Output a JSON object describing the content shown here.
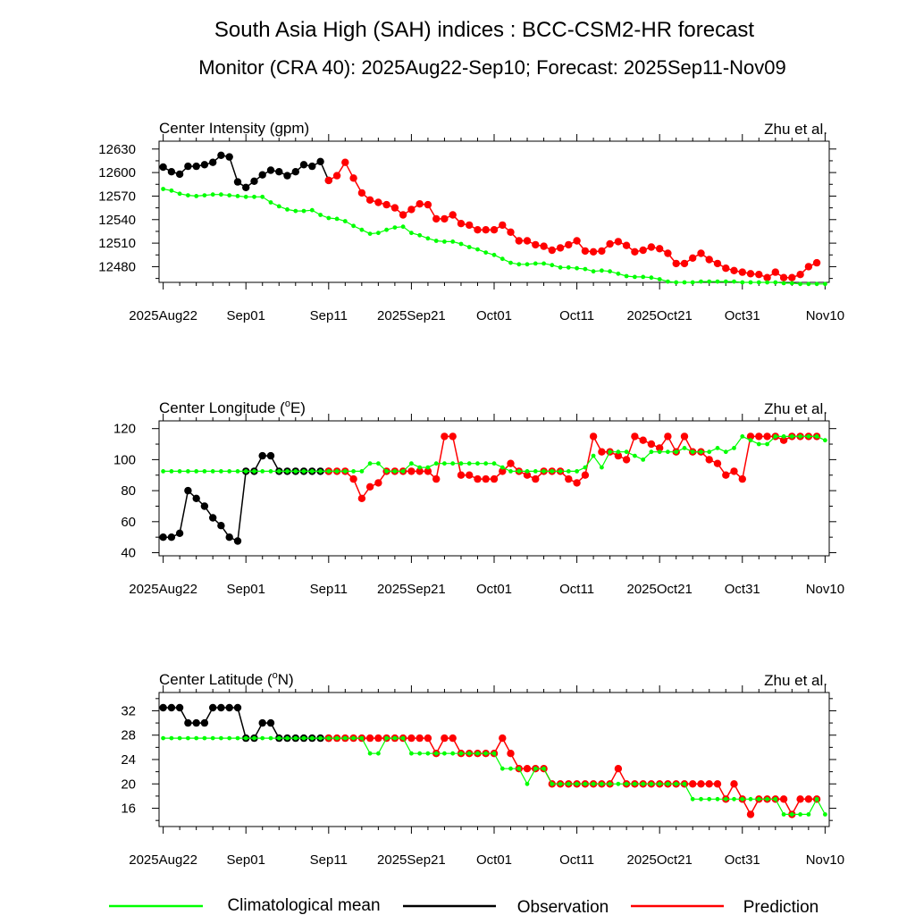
{
  "title": "South Asia High (SAH) indices : BCC-CSM2-HR forecast",
  "subtitle": "Monitor (CRA 40): 2025Aug22-Sep10; Forecast: 2025Sep11-Nov09",
  "colors": {
    "clim": "#00ff00",
    "obs": "#000000",
    "pred": "#ff0000"
  },
  "legend": {
    "placement": "bottom",
    "clim": "Climatological mean",
    "obs": "Observation",
    "pred": "Prediction"
  },
  "chart_data": [
    {
      "type": "line",
      "title": "Center Intensity (gpm)",
      "credit": "Zhu et al.",
      "ylim": [
        12460,
        12640
      ],
      "yticks": [
        12480,
        12510,
        12540,
        12570,
        12600,
        12630
      ],
      "yticklabels": [
        "12480",
        "12510",
        "12540",
        "12570",
        "12600",
        "12630"
      ],
      "xlim": [
        -0.5,
        80.5
      ],
      "xtick_positions": [
        0,
        10,
        20,
        30,
        40,
        50,
        60,
        70,
        80
      ],
      "xtick_labels": [
        "2025Aug22",
        "Sep01",
        "Sep11",
        "2025Sep21",
        "Oct01",
        "Oct11",
        "2025Oct21",
        "Oct31",
        "Nov10"
      ],
      "series": [
        {
          "name": "Climatological mean",
          "start": 0,
          "values": [
            12579,
            12577,
            12573,
            12571,
            12570,
            12571,
            12572,
            12572,
            12571,
            12570,
            12569,
            12569,
            12569,
            12562,
            12557,
            12553,
            12551,
            12551,
            12552,
            12546,
            12542,
            12541,
            12538,
            12532,
            12527,
            12522,
            12523,
            12527,
            12530,
            12531,
            12523,
            12520,
            12516,
            12513,
            12512,
            12512,
            12509,
            12505,
            12502,
            12498,
            12495,
            12490,
            12485,
            12483,
            12483,
            12484,
            12484,
            12482,
            12479,
            12479,
            12478,
            12477,
            12474,
            12475,
            12474,
            12471,
            12468,
            12467,
            12467,
            12466,
            12464,
            12461,
            12460,
            12460,
            12460,
            12461,
            12461,
            12461,
            12461,
            12461,
            12460,
            12460,
            12460,
            12460,
            12460,
            12459,
            12459,
            12458,
            12458,
            12458,
            12458
          ]
        },
        {
          "name": "Observation",
          "start": 0,
          "values": [
            12607,
            12601,
            12598,
            12608,
            12608,
            12610,
            12613,
            12622,
            12620,
            12588,
            12581,
            12589,
            12597,
            12603,
            12601,
            12596,
            12601,
            12610,
            12608,
            12614,
            12590
          ]
        },
        {
          "name": "Prediction",
          "start": 20,
          "values": [
            12590,
            12596,
            12613,
            12593,
            12574,
            12565,
            12562,
            12559,
            12555,
            12546,
            12553,
            12560,
            12559,
            12541,
            12541,
            12546,
            12535,
            12533,
            12527,
            12527,
            12527,
            12533,
            12524,
            12513,
            12513,
            12508,
            12506,
            12501,
            12504,
            12508,
            12513,
            12500,
            12499,
            12500,
            12509,
            12512,
            12507,
            12499,
            12501,
            12505,
            12503,
            12497,
            12484,
            12484,
            12491,
            12497,
            12489,
            12484,
            12478,
            12475,
            12473,
            12471,
            12470,
            12466,
            12473,
            12466,
            12466,
            12470,
            12480,
            12485
          ]
        }
      ]
    },
    {
      "type": "line",
      "title": "Center Longitude (°E)",
      "credit": "Zhu et al.",
      "ylim": [
        38,
        125
      ],
      "yticks": [
        40,
        60,
        80,
        100,
        120
      ],
      "yticklabels": [
        "40",
        "60",
        "80",
        "100",
        "120"
      ],
      "xlim": [
        -0.5,
        80.5
      ],
      "xtick_positions": [
        0,
        10,
        20,
        30,
        40,
        50,
        60,
        70,
        80
      ],
      "xtick_labels": [
        "2025Aug22",
        "Sep01",
        "Sep11",
        "2025Sep21",
        "Oct01",
        "Oct11",
        "2025Oct21",
        "Oct31",
        "Nov10"
      ],
      "series": [
        {
          "name": "Climatological mean",
          "start": 0,
          "values": [
            92.5,
            92.5,
            92.5,
            92.5,
            92.5,
            92.5,
            92.5,
            92.5,
            92.5,
            92.5,
            92.5,
            92.5,
            92.5,
            92.5,
            92.5,
            92.5,
            92.5,
            92.5,
            92.5,
            92.5,
            92.5,
            92.5,
            92.5,
            92.5,
            92.5,
            97.5,
            97.5,
            92.5,
            92.5,
            92.5,
            97.5,
            95,
            95,
            97.5,
            97.5,
            97.5,
            97.5,
            97.5,
            97.5,
            97.5,
            97.5,
            95,
            92.5,
            92.5,
            92.5,
            92.5,
            92.5,
            92.5,
            92.5,
            92.5,
            92.5,
            95,
            102.5,
            95,
            105,
            105,
            105,
            102.5,
            100,
            105,
            105,
            105,
            105,
            107.5,
            105,
            105,
            105,
            107.5,
            105,
            107.5,
            115,
            112.5,
            110,
            110,
            115,
            115,
            115,
            115,
            115,
            115,
            112.5
          ]
        },
        {
          "name": "Observation",
          "start": 0,
          "values": [
            50,
            50,
            52.5,
            80,
            75,
            70,
            62.5,
            57.5,
            50,
            47.5,
            92.5,
            92.5,
            102.5,
            102.5,
            92.5,
            92.5,
            92.5,
            92.5,
            92.5,
            92.5,
            92.5
          ]
        },
        {
          "name": "Prediction",
          "start": 20,
          "values": [
            92.5,
            92.5,
            92.5,
            87.5,
            75,
            82.5,
            85,
            92.5,
            92.5,
            92.5,
            92.5,
            92.5,
            92.5,
            87.5,
            115,
            115,
            90,
            90,
            87.5,
            87.5,
            87.5,
            92.5,
            97.5,
            92.5,
            90,
            87.5,
            92.5,
            92.5,
            92.5,
            87.5,
            85,
            90,
            115,
            105,
            105,
            102.5,
            100,
            115,
            112.5,
            110,
            107.5,
            115,
            105,
            115,
            105,
            105,
            100,
            97.5,
            90,
            92.5,
            87.5,
            115,
            115,
            115,
            115,
            112.5,
            115,
            115,
            115,
            115
          ]
        }
      ]
    },
    {
      "type": "line",
      "title": "Center Latitude (°N)",
      "credit": "Zhu et al.",
      "ylim": [
        13,
        35
      ],
      "yticks": [
        16,
        20,
        24,
        28,
        32
      ],
      "yticklabels": [
        "16",
        "20",
        "24",
        "28",
        "32"
      ],
      "xlim": [
        -0.5,
        80.5
      ],
      "xtick_positions": [
        0,
        10,
        20,
        30,
        40,
        50,
        60,
        70,
        80
      ],
      "xtick_labels": [
        "2025Aug22",
        "Sep01",
        "Sep11",
        "2025Sep21",
        "Oct01",
        "Oct11",
        "2025Oct21",
        "Oct31",
        "Nov10"
      ],
      "series": [
        {
          "name": "Climatological mean",
          "start": 0,
          "values": [
            27.5,
            27.5,
            27.5,
            27.5,
            27.5,
            27.5,
            27.5,
            27.5,
            27.5,
            27.5,
            27.5,
            27.5,
            27.5,
            27.5,
            27.5,
            27.5,
            27.5,
            27.5,
            27.5,
            27.5,
            27.5,
            27.5,
            27.5,
            27.5,
            27.5,
            25,
            25,
            27.5,
            27.5,
            27.5,
            25,
            25,
            25,
            25,
            25,
            25,
            25,
            25,
            25,
            25,
            25,
            22.5,
            22.5,
            22.5,
            20,
            22.5,
            22.5,
            20,
            20,
            20,
            20,
            20,
            20,
            20,
            20,
            20,
            20,
            20,
            20,
            20,
            20,
            20,
            20,
            20,
            17.5,
            17.5,
            17.5,
            17.5,
            17.5,
            17.5,
            17.5,
            17.5,
            17.5,
            17.5,
            17.5,
            15,
            15,
            15,
            15,
            17.5,
            15
          ]
        },
        {
          "name": "Observation",
          "start": 0,
          "values": [
            32.5,
            32.5,
            32.5,
            30,
            30,
            30,
            32.5,
            32.5,
            32.5,
            32.5,
            27.5,
            27.5,
            30,
            30,
            27.5,
            27.5,
            27.5,
            27.5,
            27.5,
            27.5,
            27.5
          ]
        },
        {
          "name": "Prediction",
          "start": 20,
          "values": [
            27.5,
            27.5,
            27.5,
            27.5,
            27.5,
            27.5,
            27.5,
            27.5,
            27.5,
            27.5,
            27.5,
            27.5,
            27.5,
            25,
            27.5,
            27.5,
            25,
            25,
            25,
            25,
            25,
            27.5,
            25,
            22.5,
            22.5,
            22.5,
            22.5,
            20,
            20,
            20,
            20,
            20,
            20,
            20,
            20,
            22.5,
            20,
            20,
            20,
            20,
            20,
            20,
            20,
            20,
            20,
            20,
            20,
            20,
            17.5,
            20,
            17.5,
            15,
            17.5,
            17.5,
            17.5,
            17.5,
            15,
            17.5,
            17.5,
            17.5
          ]
        }
      ]
    }
  ]
}
